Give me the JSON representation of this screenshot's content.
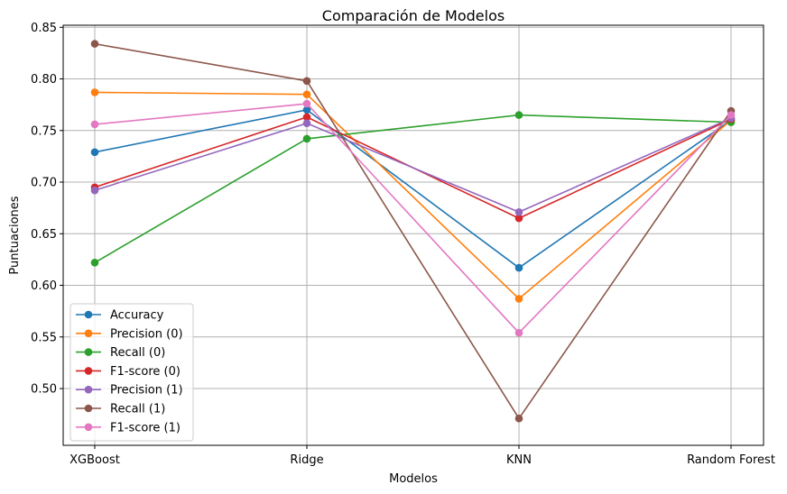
{
  "chart_data": {
    "type": "line",
    "title": "Comparación de Modelos",
    "xlabel": "Modelos",
    "ylabel": "Puntuaciones",
    "categories": [
      "XGBoost",
      "Ridge",
      "KNN",
      "Random Forest"
    ],
    "ylim": [
      0.445,
      0.852
    ],
    "yticks": [
      0.5,
      0.55,
      0.6,
      0.65,
      0.7,
      0.75,
      0.8,
      0.85
    ],
    "ytick_labels": [
      "0.50",
      "0.55",
      "0.60",
      "0.65",
      "0.70",
      "0.75",
      "0.80",
      "0.85"
    ],
    "grid": true,
    "legend_position": "lower-left",
    "series": [
      {
        "name": "Accuracy",
        "color": "#1f77b4",
        "values": [
          0.729,
          0.77,
          0.617,
          0.76
        ]
      },
      {
        "name": "Precision (0)",
        "color": "#ff7f0e",
        "values": [
          0.787,
          0.785,
          0.587,
          0.76
        ]
      },
      {
        "name": "Recall (0)",
        "color": "#2ca02c",
        "values": [
          0.622,
          0.742,
          0.765,
          0.758
        ]
      },
      {
        "name": "F1-score (0)",
        "color": "#d62728",
        "values": [
          0.695,
          0.763,
          0.665,
          0.761
        ]
      },
      {
        "name": "Precision (1)",
        "color": "#9467bd",
        "values": [
          0.692,
          0.757,
          0.671,
          0.762
        ]
      },
      {
        "name": "Recall (1)",
        "color": "#8c564b",
        "values": [
          0.834,
          0.798,
          0.471,
          0.769
        ]
      },
      {
        "name": "F1-score (1)",
        "color": "#e377c2",
        "values": [
          0.756,
          0.776,
          0.554,
          0.765
        ]
      }
    ]
  }
}
